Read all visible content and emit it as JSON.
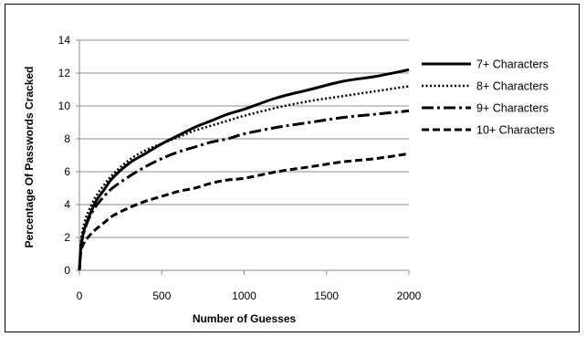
{
  "chart_data": {
    "type": "line",
    "title": "",
    "xlabel": "Number of Guesses",
    "ylabel": "Percentage Of Passwords  Cracked",
    "xlim": [
      0,
      2000
    ],
    "ylim": [
      0,
      14
    ],
    "xticks": [
      0,
      500,
      1000,
      1500,
      2000
    ],
    "yticks": [
      0,
      2,
      4,
      6,
      8,
      10,
      12,
      14
    ],
    "grid": "horizontal",
    "legend_position": "right",
    "series": [
      {
        "name": "7+ Characters",
        "line_style": "solid",
        "color": "#000000",
        "x": [
          0,
          10,
          30,
          60,
          100,
          150,
          200,
          300,
          400,
          500,
          600,
          700,
          800,
          900,
          1000,
          1200,
          1400,
          1600,
          1800,
          2000
        ],
        "y": [
          0,
          1.5,
          2.5,
          3.3,
          4.2,
          4.9,
          5.6,
          6.5,
          7.1,
          7.7,
          8.2,
          8.7,
          9.1,
          9.5,
          9.8,
          10.5,
          11.0,
          11.5,
          11.8,
          12.2
        ]
      },
      {
        "name": "8+ Characters",
        "line_style": "dotted",
        "color": "#000000",
        "x": [
          0,
          10,
          30,
          60,
          100,
          150,
          200,
          300,
          400,
          500,
          600,
          700,
          800,
          900,
          1000,
          1200,
          1400,
          1600,
          1800,
          2000
        ],
        "y": [
          0,
          1.8,
          2.9,
          3.7,
          4.5,
          5.2,
          5.8,
          6.7,
          7.3,
          7.7,
          8.1,
          8.5,
          8.8,
          9.1,
          9.4,
          9.9,
          10.3,
          10.6,
          10.9,
          11.2
        ]
      },
      {
        "name": "9+ Characters",
        "line_style": "dash-dot",
        "color": "#000000",
        "x": [
          0,
          10,
          30,
          60,
          100,
          150,
          200,
          300,
          400,
          500,
          600,
          700,
          800,
          900,
          1000,
          1200,
          1400,
          1600,
          1800,
          2000
        ],
        "y": [
          0,
          1.5,
          2.4,
          3.2,
          3.9,
          4.5,
          5.0,
          5.7,
          6.3,
          6.8,
          7.2,
          7.5,
          7.8,
          8.0,
          8.3,
          8.7,
          9.0,
          9.3,
          9.5,
          9.7
        ]
      },
      {
        "name": "10+ Characters",
        "line_style": "dashed",
        "color": "#000000",
        "x": [
          0,
          10,
          30,
          60,
          100,
          150,
          200,
          300,
          400,
          500,
          600,
          700,
          800,
          900,
          1000,
          1200,
          1400,
          1600,
          1800,
          2000
        ],
        "y": [
          0,
          1.2,
          1.7,
          2.1,
          2.5,
          2.9,
          3.3,
          3.8,
          4.2,
          4.5,
          4.8,
          5.0,
          5.3,
          5.5,
          5.6,
          6.0,
          6.3,
          6.6,
          6.8,
          7.1
        ]
      }
    ]
  }
}
